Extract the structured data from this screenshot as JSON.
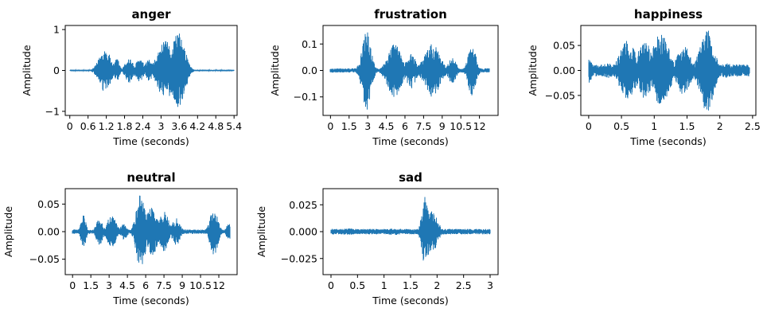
{
  "figure": {
    "background": "#ffffff",
    "line_color": "#1f77b4"
  },
  "chart_data": [
    {
      "type": "line",
      "title": "anger",
      "xlabel": "Time (seconds)",
      "ylabel": "Amplitude",
      "xlim": [
        -0.15,
        5.5
      ],
      "ylim": [
        -1.1,
        1.1
      ],
      "xticks": [
        0,
        0.6,
        1.2,
        1.8,
        2.4,
        3,
        3.6,
        4.2,
        4.8,
        5.4
      ],
      "xticklabels": [
        "0",
        "0.6",
        "1.2",
        "1.8",
        "2.4",
        "3",
        "3.6",
        "4.2",
        "4.8",
        "5.4"
      ],
      "yticks": [
        -1,
        0,
        1
      ],
      "yticklabels": [
        "−1",
        "0",
        "1"
      ],
      "duration": 5.4,
      "noise_floor": 0.02,
      "bursts": [
        {
          "t": 1.15,
          "w": 0.18,
          "a": 0.55
        },
        {
          "t": 1.55,
          "w": 0.08,
          "a": 0.3
        },
        {
          "t": 1.95,
          "w": 0.12,
          "a": 0.32
        },
        {
          "t": 2.3,
          "w": 0.12,
          "a": 0.3
        },
        {
          "t": 2.6,
          "w": 0.1,
          "a": 0.28
        },
        {
          "t": 3.15,
          "w": 0.25,
          "a": 0.72
        },
        {
          "t": 3.55,
          "w": 0.2,
          "a": 0.95
        },
        {
          "t": 3.75,
          "w": 0.12,
          "a": 0.55
        }
      ]
    },
    {
      "type": "line",
      "title": "frustration",
      "xlabel": "Time (seconds)",
      "ylabel": "Amplitude",
      "xlim": [
        -0.6,
        13.5
      ],
      "ylim": [
        -0.17,
        0.17
      ],
      "xticks": [
        0,
        1.5,
        3,
        4.5,
        6,
        7.5,
        9,
        10.5,
        12
      ],
      "xticklabels": [
        "0",
        "1.5",
        "3",
        "4.5",
        "6",
        "7.5",
        "9",
        "10.5",
        "12"
      ],
      "yticks": [
        -0.1,
        0.0,
        0.1
      ],
      "yticklabels": [
        "−0.1",
        "0.0",
        "0.1"
      ],
      "duration": 12.8,
      "noise_floor": 0.008,
      "bursts": [
        {
          "t": 2.9,
          "w": 0.35,
          "a": 0.15
        },
        {
          "t": 5.15,
          "w": 0.55,
          "a": 0.1
        },
        {
          "t": 6.5,
          "w": 0.35,
          "a": 0.07
        },
        {
          "t": 8.2,
          "w": 0.6,
          "a": 0.1
        },
        {
          "t": 9.8,
          "w": 0.3,
          "a": 0.05
        },
        {
          "t": 11.4,
          "w": 0.3,
          "a": 0.1
        }
      ]
    },
    {
      "type": "line",
      "title": "happiness",
      "xlabel": "Time (seconds)",
      "ylabel": "Amplitude",
      "xlim": [
        -0.12,
        2.55
      ],
      "ylim": [
        -0.09,
        0.09
      ],
      "xticks": [
        0,
        0.5,
        1,
        1.5,
        2,
        2.5
      ],
      "xticklabels": [
        "0",
        "0.5",
        "1",
        "1.5",
        "2",
        "2.5"
      ],
      "yticks": [
        -0.05,
        0.0,
        0.05
      ],
      "yticklabels": [
        "−0.05",
        "0.00",
        "0.05"
      ],
      "duration": 2.45,
      "noise_floor": 0.012,
      "bursts": [
        {
          "t": 0.0,
          "w": 0.05,
          "a": 0.025
        },
        {
          "t": 0.3,
          "w": 0.1,
          "a": 0.015
        },
        {
          "t": 0.6,
          "w": 0.12,
          "a": 0.06
        },
        {
          "t": 0.85,
          "w": 0.1,
          "a": 0.06
        },
        {
          "t": 1.1,
          "w": 0.12,
          "a": 0.075
        },
        {
          "t": 1.45,
          "w": 0.1,
          "a": 0.05
        },
        {
          "t": 1.8,
          "w": 0.1,
          "a": 0.085
        },
        {
          "t": 2.1,
          "w": 0.12,
          "a": 0.015
        }
      ]
    },
    {
      "type": "line",
      "title": "neutral",
      "xlabel": "Time (seconds)",
      "ylabel": "Amplitude",
      "xlim": [
        -0.6,
        13.5
      ],
      "ylim": [
        -0.078,
        0.078
      ],
      "xticks": [
        0,
        1.5,
        3,
        4.5,
        6,
        7.5,
        9,
        10.5,
        12
      ],
      "xticklabels": [
        "0",
        "1.5",
        "3",
        "4.5",
        "6",
        "7.5",
        "9",
        "10.5",
        "12"
      ],
      "yticks": [
        -0.05,
        0.0,
        0.05
      ],
      "yticklabels": [
        "−0.05",
        "0.00",
        "0.05"
      ],
      "duration": 12.9,
      "noise_floor": 0.004,
      "bursts": [
        {
          "t": 0.9,
          "w": 0.2,
          "a": 0.03
        },
        {
          "t": 2.2,
          "w": 0.25,
          "a": 0.025
        },
        {
          "t": 3.2,
          "w": 0.35,
          "a": 0.03
        },
        {
          "t": 4.2,
          "w": 0.25,
          "a": 0.015
        },
        {
          "t": 5.6,
          "w": 0.35,
          "a": 0.07
        },
        {
          "t": 6.5,
          "w": 0.45,
          "a": 0.045
        },
        {
          "t": 7.5,
          "w": 0.35,
          "a": 0.04
        },
        {
          "t": 8.5,
          "w": 0.3,
          "a": 0.025
        },
        {
          "t": 11.6,
          "w": 0.3,
          "a": 0.045
        },
        {
          "t": 12.8,
          "w": 0.2,
          "a": 0.015
        }
      ]
    },
    {
      "type": "line",
      "title": "sad",
      "xlabel": "Time (seconds)",
      "ylabel": "Amplitude",
      "xlim": [
        -0.15,
        3.15
      ],
      "ylim": [
        -0.04,
        0.04
      ],
      "xticks": [
        0,
        0.5,
        1,
        1.5,
        2,
        2.5,
        3
      ],
      "xticklabels": [
        "0",
        "0.5",
        "1",
        "1.5",
        "2",
        "2.5",
        "3"
      ],
      "yticks": [
        -0.025,
        0.0,
        0.025
      ],
      "yticklabels": [
        "−0.025",
        "0.000",
        "0.025"
      ],
      "duration": 3.0,
      "noise_floor": 0.0025,
      "bursts": [
        {
          "t": 0.35,
          "w": 0.25,
          "a": 0.003
        },
        {
          "t": 1.2,
          "w": 0.2,
          "a": 0.003
        },
        {
          "t": 1.78,
          "w": 0.06,
          "a": 0.035
        },
        {
          "t": 1.9,
          "w": 0.1,
          "a": 0.02
        }
      ]
    }
  ]
}
